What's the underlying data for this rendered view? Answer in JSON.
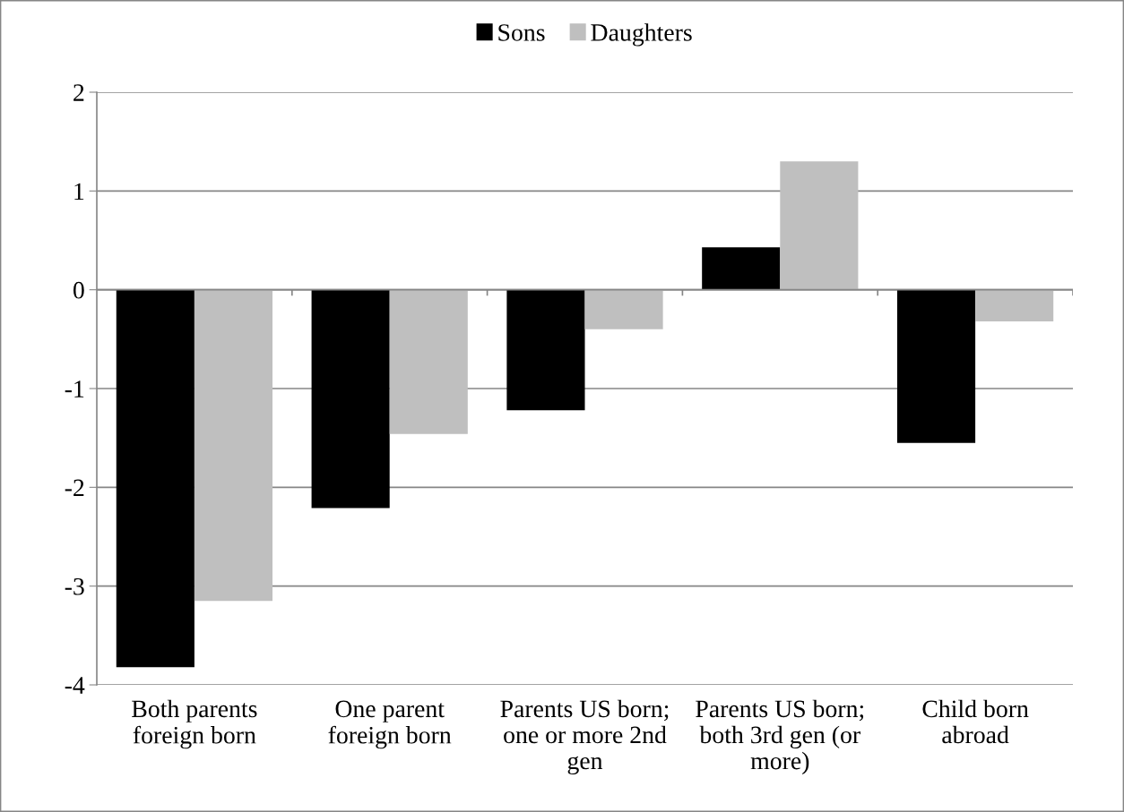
{
  "chart_data": {
    "type": "bar",
    "categories": [
      "Both parents\nforeign born",
      "One parent\nforeign born",
      "Parents US born;\none or more 2nd\ngen",
      "Parents US born;\nboth 3rd gen (or\nmore)",
      "Child born\nabroad"
    ],
    "series": [
      {
        "name": "Sons",
        "color": "#000000",
        "values": [
          -3.82,
          -2.21,
          -1.22,
          0.43,
          -1.55
        ]
      },
      {
        "name": "Daughters",
        "color": "#bfbfbf",
        "values": [
          -3.15,
          -1.46,
          -0.4,
          1.3,
          -0.32
        ]
      }
    ],
    "ylim": [
      -4,
      2
    ],
    "yticks": [
      -4,
      -3,
      -2,
      -1,
      0,
      1,
      2
    ],
    "grid": "y",
    "legend": "top"
  }
}
